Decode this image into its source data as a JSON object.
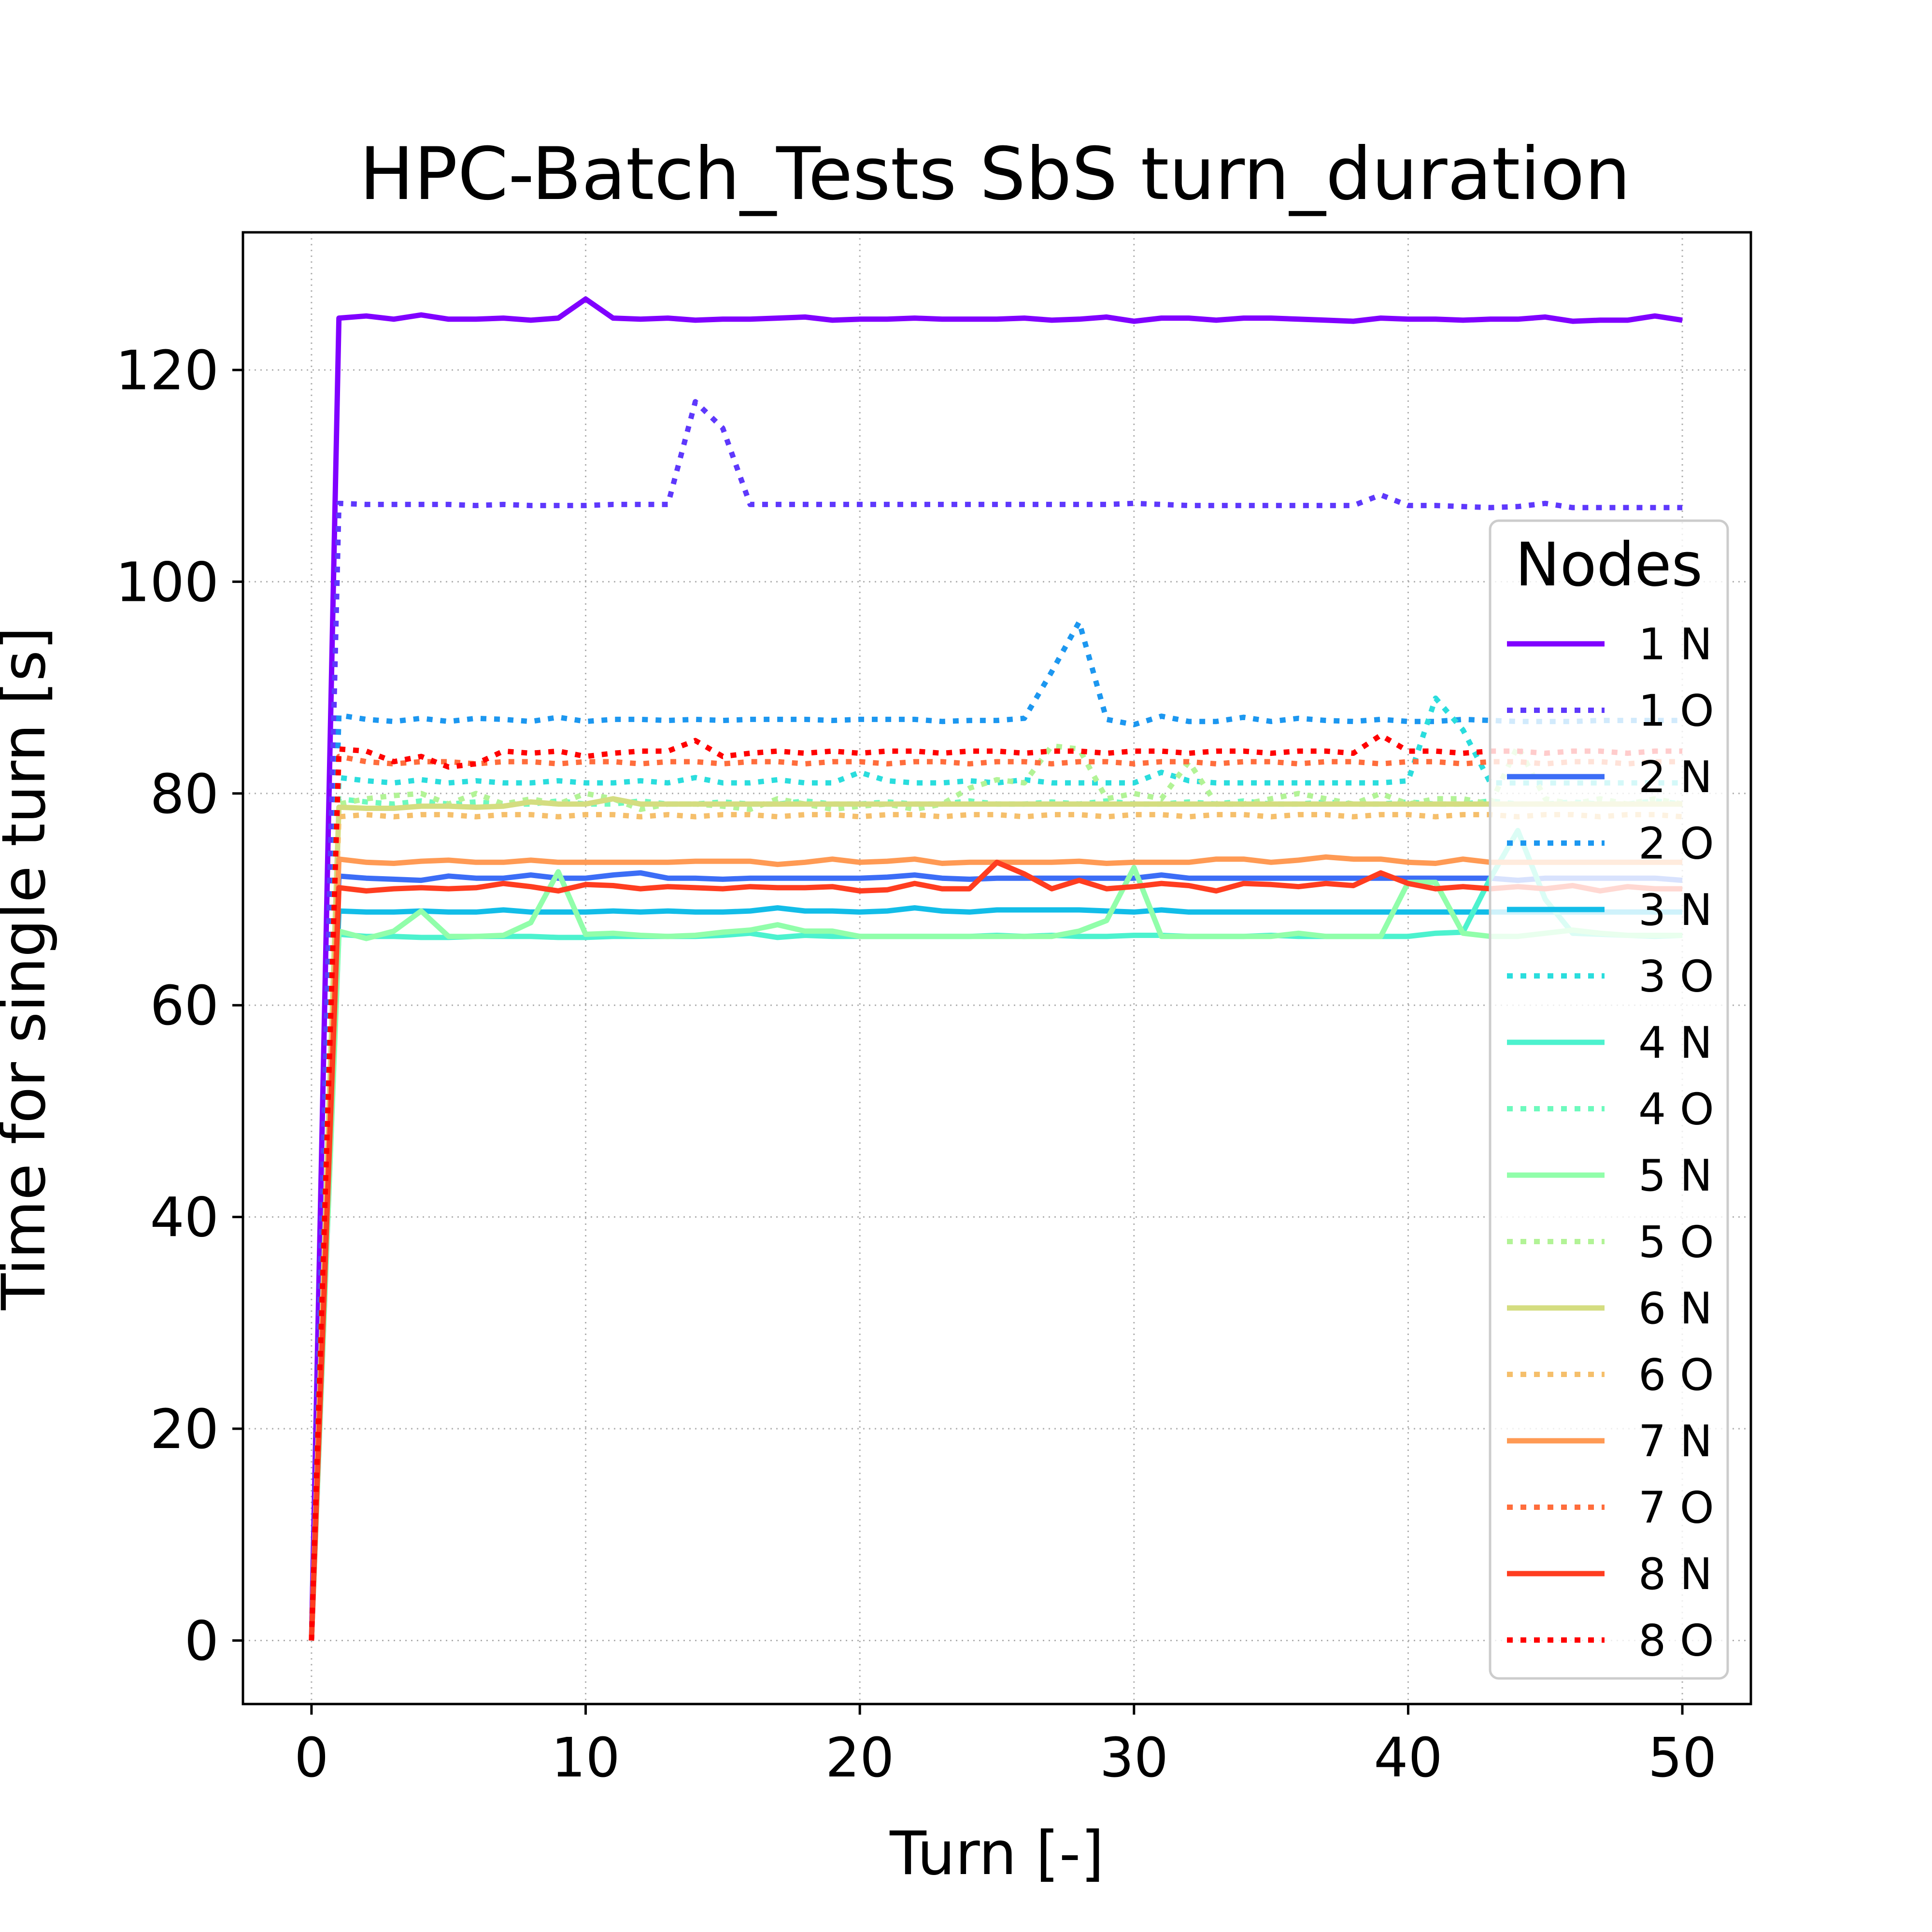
{
  "chart_data": {
    "type": "line",
    "title": "HPC-Batch_Tests SbS turn_duration",
    "xlabel": "Turn [-]",
    "ylabel": "Time for single turn [s]",
    "xlim": [
      -2.5,
      52.5
    ],
    "ylim": [
      -6,
      133
    ],
    "xticks": [
      0,
      10,
      20,
      30,
      40,
      50
    ],
    "yticks": [
      0,
      20,
      40,
      60,
      80,
      100,
      120
    ],
    "grid": true,
    "legend": {
      "title": "Nodes",
      "placement": "right"
    },
    "x": [
      0,
      1,
      2,
      3,
      4,
      5,
      6,
      7,
      8,
      9,
      10,
      11,
      12,
      13,
      14,
      15,
      16,
      17,
      18,
      19,
      20,
      21,
      22,
      23,
      24,
      25,
      26,
      27,
      28,
      29,
      30,
      31,
      32,
      33,
      34,
      35,
      36,
      37,
      38,
      39,
      40,
      41,
      42,
      43,
      44,
      45,
      46,
      47,
      48,
      49,
      50
    ],
    "series": [
      {
        "name": "1 N",
        "color": "#8000ff",
        "style": "solid",
        "values": [
          0,
          124.9,
          125.1,
          124.8,
          125.2,
          124.8,
          124.8,
          124.9,
          124.7,
          124.9,
          126.7,
          124.9,
          124.8,
          124.9,
          124.7,
          124.8,
          124.8,
          124.9,
          125.0,
          124.7,
          124.8,
          124.8,
          124.9,
          124.8,
          124.8,
          124.8,
          124.9,
          124.7,
          124.8,
          125.0,
          124.6,
          124.9,
          124.9,
          124.7,
          124.9,
          124.9,
          124.8,
          124.7,
          124.6,
          124.9,
          124.8,
          124.8,
          124.7,
          124.8,
          124.8,
          125.0,
          124.6,
          124.7,
          124.7,
          125.1,
          124.7
        ]
      },
      {
        "name": "1 O",
        "color": "#5e38fc",
        "style": "dotted",
        "values": [
          0,
          107.4,
          107.3,
          107.3,
          107.3,
          107.3,
          107.2,
          107.3,
          107.2,
          107.2,
          107.2,
          107.3,
          107.3,
          107.3,
          117.0,
          114.5,
          107.3,
          107.3,
          107.3,
          107.3,
          107.3,
          107.3,
          107.3,
          107.3,
          107.3,
          107.3,
          107.3,
          107.3,
          107.3,
          107.3,
          107.4,
          107.3,
          107.2,
          107.2,
          107.2,
          107.2,
          107.2,
          107.2,
          107.2,
          108.2,
          107.2,
          107.2,
          107.1,
          107.0,
          107.1,
          107.4,
          107.0,
          107.0,
          107.0,
          107.0,
          107.0
        ]
      },
      {
        "name": "2 N",
        "color": "#3c6df6",
        "style": "solid",
        "values": [
          0,
          72.2,
          72.0,
          71.9,
          71.8,
          72.2,
          72.0,
          72.0,
          72.3,
          72.0,
          72.0,
          72.3,
          72.5,
          72.0,
          72.0,
          71.9,
          72.0,
          72.0,
          72.0,
          72.0,
          72.0,
          72.1,
          72.3,
          72.0,
          71.9,
          72.0,
          72.0,
          72.0,
          72.0,
          72.0,
          72.0,
          72.3,
          72.0,
          72.0,
          72.0,
          72.0,
          72.0,
          72.0,
          72.0,
          72.0,
          72.0,
          72.0,
          72.0,
          72.0,
          71.8,
          72.0,
          72.0,
          72.0,
          72.0,
          72.0,
          71.8
        ]
      },
      {
        "name": "2 O",
        "color": "#1c97f0",
        "style": "dotted",
        "values": [
          0,
          87.4,
          87.0,
          86.8,
          87.1,
          86.8,
          87.1,
          87.0,
          86.8,
          87.2,
          86.8,
          87.0,
          87.0,
          86.9,
          87.0,
          86.9,
          87.0,
          87.0,
          87.0,
          86.9,
          87.0,
          87.0,
          87.0,
          86.8,
          86.9,
          86.9,
          87.1,
          91.5,
          96.2,
          87.0,
          86.5,
          87.3,
          86.8,
          86.8,
          87.2,
          86.8,
          87.1,
          86.9,
          86.8,
          87.0,
          86.8,
          86.8,
          87.0,
          86.9,
          86.8,
          86.8,
          86.8,
          86.9,
          86.9,
          86.9,
          86.9
        ]
      },
      {
        "name": "3 N",
        "color": "#12bde8",
        "style": "solid",
        "values": [
          0,
          68.9,
          68.8,
          68.8,
          68.9,
          68.8,
          68.8,
          69.0,
          68.8,
          68.8,
          68.8,
          68.9,
          68.8,
          68.9,
          68.8,
          68.8,
          68.9,
          69.2,
          68.9,
          68.9,
          68.8,
          68.9,
          69.2,
          68.9,
          68.8,
          69.0,
          69.0,
          69.0,
          69.0,
          68.9,
          68.8,
          69.0,
          68.8,
          68.8,
          68.8,
          68.8,
          68.8,
          68.8,
          68.8,
          68.8,
          68.8,
          68.8,
          68.8,
          68.8,
          68.8,
          68.8,
          68.8,
          68.8,
          68.8,
          68.8,
          68.8
        ]
      },
      {
        "name": "3 O",
        "color": "#2adddd",
        "style": "dotted",
        "values": [
          0,
          81.5,
          81.2,
          81.0,
          81.3,
          81.0,
          81.2,
          81.0,
          81.0,
          81.2,
          81.0,
          81.0,
          81.2,
          81.0,
          81.5,
          81.0,
          81.0,
          81.3,
          81.0,
          81.0,
          82.0,
          81.2,
          81.0,
          81.0,
          81.2,
          81.0,
          81.3,
          81.0,
          81.0,
          81.0,
          81.0,
          82.0,
          81.2,
          81.0,
          81.0,
          81.0,
          81.0,
          81.0,
          81.0,
          81.0,
          81.2,
          89.0,
          86.0,
          81.0,
          81.0,
          81.0,
          81.0,
          81.0,
          81.0,
          81.0,
          81.0
        ]
      },
      {
        "name": "4 N",
        "color": "#4cf2ce",
        "style": "solid",
        "values": [
          0,
          66.7,
          66.5,
          66.5,
          66.4,
          66.4,
          66.5,
          66.5,
          66.5,
          66.4,
          66.4,
          66.5,
          66.5,
          66.5,
          66.5,
          66.6,
          66.8,
          66.4,
          66.6,
          66.5,
          66.5,
          66.5,
          66.5,
          66.5,
          66.5,
          66.6,
          66.5,
          66.6,
          66.5,
          66.5,
          66.6,
          66.6,
          66.5,
          66.5,
          66.5,
          66.6,
          66.5,
          66.5,
          66.5,
          66.5,
          66.5,
          66.8,
          66.9,
          72.0,
          76.5,
          70.0,
          66.8,
          66.7,
          66.6,
          66.5,
          66.6
        ]
      },
      {
        "name": "4 O",
        "color": "#6dfabd",
        "style": "dotted",
        "values": [
          0,
          79.5,
          79.2,
          79.0,
          79.3,
          79.0,
          79.2,
          79.0,
          79.0,
          79.3,
          79.0,
          79.0,
          79.3,
          79.0,
          79.0,
          79.2,
          79.0,
          79.0,
          79.3,
          79.0,
          79.0,
          79.2,
          79.0,
          79.0,
          79.3,
          79.0,
          79.0,
          79.2,
          79.0,
          79.3,
          79.0,
          79.0,
          79.2,
          79.0,
          79.3,
          79.0,
          79.0,
          79.2,
          79.0,
          79.0,
          79.2,
          79.0,
          79.0,
          79.3,
          79.0,
          79.0,
          79.2,
          79.0,
          79.0,
          79.3,
          79.0
        ]
      },
      {
        "name": "5 N",
        "color": "#91feaa",
        "style": "solid",
        "values": [
          0,
          67.0,
          66.3,
          67.0,
          68.9,
          66.5,
          66.5,
          66.6,
          67.8,
          72.6,
          66.7,
          66.8,
          66.6,
          66.5,
          66.6,
          66.9,
          67.1,
          67.6,
          67.0,
          67.0,
          66.5,
          66.5,
          66.5,
          66.5,
          66.5,
          66.5,
          66.5,
          66.5,
          67.0,
          68.0,
          73.0,
          66.5,
          66.5,
          66.5,
          66.5,
          66.5,
          66.8,
          66.5,
          66.5,
          66.5,
          71.6,
          71.6,
          66.8,
          66.5,
          66.5,
          66.8,
          67.1,
          66.8,
          66.6,
          66.6,
          66.6
        ]
      },
      {
        "name": "5 O",
        "color": "#b2f396",
        "style": "dotted",
        "values": [
          0,
          79.0,
          79.5,
          79.8,
          80.0,
          79.0,
          80.0,
          79.0,
          79.5,
          79.0,
          80.0,
          79.5,
          78.5,
          79.0,
          79.0,
          78.8,
          78.5,
          79.5,
          79.0,
          78.5,
          78.8,
          79.0,
          78.5,
          79.0,
          80.5,
          81.3,
          81.0,
          84.5,
          84.2,
          79.5,
          80.0,
          79.5,
          83.0,
          79.0,
          79.0,
          79.5,
          80.0,
          79.5,
          79.0,
          80.0,
          79.0,
          79.5,
          79.5,
          79.0,
          84.5,
          79.5,
          79.0,
          79.5,
          79.0,
          79.5,
          79.0
        ]
      },
      {
        "name": "6 N",
        "color": "#d4dd80",
        "style": "solid",
        "values": [
          0,
          78.7,
          78.6,
          78.6,
          78.8,
          78.8,
          78.7,
          78.8,
          79.2,
          79.0,
          79.0,
          79.5,
          79.0,
          79.0,
          79.0,
          79.0,
          79.0,
          79.0,
          79.0,
          79.0,
          79.0,
          79.0,
          79.0,
          79.0,
          79.0,
          79.0,
          79.0,
          79.0,
          79.0,
          79.0,
          79.0,
          79.0,
          79.0,
          79.0,
          79.0,
          79.0,
          79.0,
          79.0,
          79.0,
          79.0,
          79.0,
          79.0,
          79.0,
          79.0,
          79.0,
          79.0,
          79.0,
          79.0,
          79.0,
          79.0,
          79.0
        ]
      },
      {
        "name": "6 O",
        "color": "#f5bf6b",
        "style": "dotted",
        "values": [
          0,
          77.8,
          78.0,
          77.8,
          78.0,
          78.0,
          77.8,
          78.0,
          78.0,
          77.8,
          78.0,
          78.0,
          77.8,
          78.0,
          77.8,
          78.0,
          78.0,
          77.8,
          78.0,
          78.0,
          77.8,
          78.0,
          78.0,
          77.8,
          78.0,
          78.0,
          77.8,
          78.0,
          78.0,
          77.8,
          78.0,
          78.0,
          77.8,
          78.0,
          78.0,
          77.8,
          78.0,
          78.0,
          77.8,
          78.0,
          78.0,
          77.8,
          78.0,
          78.0,
          77.8,
          78.0,
          78.0,
          77.8,
          78.0,
          78.0,
          77.8
        ]
      },
      {
        "name": "7 N",
        "color": "#ff9a54",
        "style": "solid",
        "values": [
          0,
          73.8,
          73.5,
          73.4,
          73.6,
          73.7,
          73.5,
          73.5,
          73.7,
          73.5,
          73.5,
          73.5,
          73.5,
          73.5,
          73.6,
          73.6,
          73.6,
          73.3,
          73.5,
          73.8,
          73.5,
          73.6,
          73.8,
          73.4,
          73.5,
          73.5,
          73.5,
          73.5,
          73.6,
          73.4,
          73.5,
          73.5,
          73.5,
          73.8,
          73.8,
          73.5,
          73.7,
          74.0,
          73.8,
          73.8,
          73.5,
          73.4,
          73.8,
          73.5,
          73.5,
          73.5,
          73.5,
          73.5,
          73.5,
          73.5,
          73.5
        ]
      },
      {
        "name": "7 O",
        "color": "#ff6d3c",
        "style": "dotted",
        "values": [
          0,
          83.5,
          83.0,
          82.8,
          83.0,
          83.0,
          82.8,
          83.0,
          83.0,
          82.8,
          83.0,
          83.0,
          82.8,
          83.0,
          83.0,
          82.8,
          83.0,
          83.0,
          82.8,
          83.0,
          83.0,
          82.8,
          83.0,
          83.0,
          82.8,
          83.0,
          83.0,
          82.8,
          83.0,
          83.0,
          82.8,
          83.0,
          83.0,
          82.8,
          83.0,
          83.0,
          82.8,
          83.0,
          83.0,
          82.8,
          83.0,
          83.0,
          82.8,
          83.0,
          83.0,
          82.8,
          83.0,
          83.0,
          82.8,
          83.0,
          83.0
        ]
      },
      {
        "name": "8 N",
        "color": "#ff3d20",
        "style": "solid",
        "values": [
          0,
          71.1,
          70.8,
          71.0,
          71.1,
          71.0,
          71.1,
          71.5,
          71.2,
          70.8,
          71.4,
          71.3,
          71.0,
          71.2,
          71.1,
          71.0,
          71.2,
          71.1,
          71.1,
          71.2,
          70.8,
          70.9,
          71.5,
          71.0,
          71.0,
          73.5,
          72.4,
          71.0,
          71.8,
          71.0,
          71.2,
          71.5,
          71.3,
          70.8,
          71.5,
          71.4,
          71.2,
          71.5,
          71.3,
          72.5,
          71.5,
          71.0,
          71.2,
          71.0,
          71.2,
          71.0,
          71.3,
          70.8,
          71.2,
          71.0,
          71.0
        ]
      },
      {
        "name": "8 O",
        "color": "#ff0000",
        "style": "dotted",
        "values": [
          0,
          84.2,
          84.0,
          83.0,
          83.5,
          82.5,
          82.8,
          84.0,
          83.8,
          84.0,
          83.5,
          83.8,
          84.0,
          84.0,
          85.0,
          83.5,
          83.8,
          84.0,
          83.8,
          84.0,
          83.8,
          84.0,
          84.0,
          83.8,
          84.0,
          84.0,
          83.8,
          84.0,
          84.0,
          83.8,
          84.0,
          84.0,
          83.8,
          84.0,
          84.0,
          83.8,
          84.0,
          84.0,
          83.8,
          85.5,
          84.0,
          84.0,
          83.8,
          84.0,
          84.0,
          83.8,
          84.0,
          84.0,
          83.8,
          84.0,
          84.0
        ]
      }
    ]
  }
}
